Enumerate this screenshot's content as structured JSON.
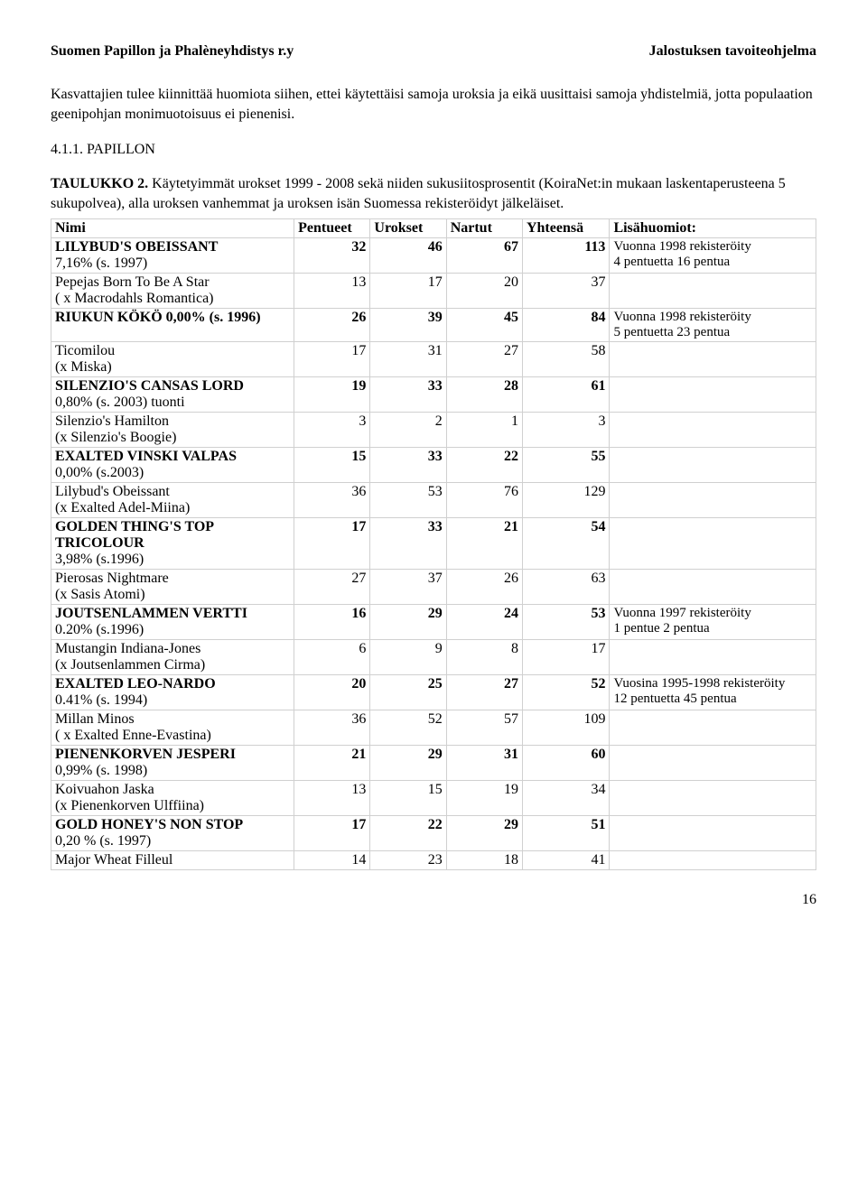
{
  "header": {
    "left": "Suomen Papillon ja Phalèneyhdistys r.y",
    "right": "Jalostuksen tavoiteohjelma"
  },
  "paragraph1": "Kasvattajien tulee kiinnittää huomiota siihen, ettei käytettäisi samoja uroksia ja eikä uusittaisi samoja yhdistelmiä, jotta populaation geenipohjan monimuotoisuus ei pienenisi.",
  "sectionTitle": "4.1.1. PAPILLON",
  "tableIntroPrefix": "TAULUKKO 2.",
  "tableIntroRest": " Käytetyimmät urokset 1999 - 2008 sekä niiden sukusiitosprosentit (KoiraNet:in mukaan laskentaperusteena 5 sukupolvea), alla uroksen vanhemmat ja uroksen isän Suomessa rekisteröidyt jälkeläiset.",
  "columns": {
    "name": "Nimi",
    "pentueet": "Pentueet",
    "urokset": "Urokset",
    "nartut": "Nartut",
    "yhteensa": "Yhteensä",
    "note": "Lisähuomiot:"
  },
  "rows": [
    {
      "bold": true,
      "l1": "LILYBUD'S OBEISSANT",
      "l2": "7,16%   (s. 1997)",
      "p": "32",
      "u": "46",
      "n": "67",
      "y": "113",
      "note1": "Vuonna 1998 rekisteröity",
      "note2": "4 pentuetta 16 pentua"
    },
    {
      "bold": false,
      "l1": "Pepejas Born To Be A Star",
      "l2": "( x Macrodahls Romantica)",
      "p": "13",
      "u": "17",
      "n": "20",
      "y": "37",
      "note1": "",
      "note2": ""
    },
    {
      "bold": true,
      "l1": "RIUKUN KÖKÖ  0,00% (s. 1996)",
      "l2": "",
      "p": "26",
      "u": "39",
      "n": "45",
      "y": "84",
      "note1": "Vuonna 1998 rekisteröity",
      "note2": "5 pentuetta 23 pentua"
    },
    {
      "bold": false,
      "l1": "Ticomilou",
      "l2": "(x Miska)",
      "p": "17",
      "u": "31",
      "n": "27",
      "y": "58",
      "note1": "",
      "note2": ""
    },
    {
      "bold": true,
      "l1": "SILENZIO'S CANSAS LORD",
      "l2": "0,80% (s. 2003) tuonti",
      "p": "19",
      "u": "33",
      "n": "28",
      "y": "61",
      "note1": "",
      "note2": ""
    },
    {
      "bold": false,
      "l1": "Silenzio's Hamilton",
      "l2": "(x Silenzio's Boogie)",
      "p": "3",
      "u": "2",
      "n": "1",
      "y": "3",
      "note1": "",
      "note2": ""
    },
    {
      "bold": true,
      "l1": "EXALTED VINSKI VALPAS",
      "l2": "0,00% (s.2003)",
      "p": "15",
      "u": "33",
      "n": "22",
      "y": "55",
      "note1": "",
      "note2": ""
    },
    {
      "bold": false,
      "l1": "Lilybud's Obeissant",
      "l2": "(x Exalted Adel-Miina)",
      "p": "36",
      "u": "53",
      "n": "76",
      "y": "129",
      "note1": "",
      "note2": ""
    },
    {
      "bold": true,
      "l1": "GOLDEN THING'S TOP TRICOLOUR",
      "l2": "3,98% (s.1996)",
      "inline": true,
      "p": "17",
      "u": "33",
      "n": "21",
      "y": "54",
      "note1": "",
      "note2": ""
    },
    {
      "bold": false,
      "l1": "Pierosas Nightmare",
      "l2": "(x  Sasis Atomi)",
      "p": "27",
      "u": "37",
      "n": "26",
      "y": "63",
      "note1": "",
      "note2": ""
    },
    {
      "bold": true,
      "l1": "JOUTSENLAMMEN VERTTI",
      "l2": "0.20% (s.1996)",
      "p": "16",
      "u": "29",
      "n": "24",
      "y": "53",
      "note1": "Vuonna 1997 rekisteröity",
      "note2": "1 pentue 2 pentua"
    },
    {
      "bold": false,
      "l1": "Mustangin Indiana-Jones",
      "l2": "(x Joutsenlammen Cirma)",
      "p": "6",
      "u": "9",
      "n": "8",
      "y": "17",
      "note1": "",
      "note2": ""
    },
    {
      "bold": true,
      "l1": "EXALTED LEO-NARDO",
      "l2": "0.41%  (s. 1994)",
      "p": "20",
      "u": "25",
      "n": "27",
      "y": "52",
      "note1": "Vuosina 1995-1998 rekisteröity",
      "note2": "12 pentuetta 45 pentua"
    },
    {
      "bold": false,
      "l1": "Millan Minos",
      "l2": " ( x Exalted Enne-Evastina)",
      "p": "36",
      "u": "52",
      "n": "57",
      "y": "109",
      "note1": "",
      "note2": ""
    },
    {
      "bold": true,
      "l1": "PIENENKORVEN JESPERI",
      "l2": "0,99%  (s. 1998)",
      "p": "21",
      "u": "29",
      "n": "31",
      "y": "60",
      "note1": "",
      "note2": ""
    },
    {
      "bold": false,
      "l1": "Koivuahon Jaska",
      "l2": "(x Pienenkorven Ulffiina)",
      "p": "13",
      "u": "15",
      "n": "19",
      "y": "34",
      "note1": "",
      "note2": ""
    },
    {
      "bold": true,
      "l1": "GOLD HONEY'S NON STOP",
      "l2": "0,20 %  (s. 1997)",
      "p": "17",
      "u": "22",
      "n": "29",
      "y": "51",
      "note1": "",
      "note2": ""
    },
    {
      "bold": false,
      "l1": "Major Wheat Filleul",
      "l2": "",
      "p": "14",
      "u": "23",
      "n": "18",
      "y": "41",
      "note1": "",
      "note2": ""
    }
  ],
  "pageNumber": "16"
}
